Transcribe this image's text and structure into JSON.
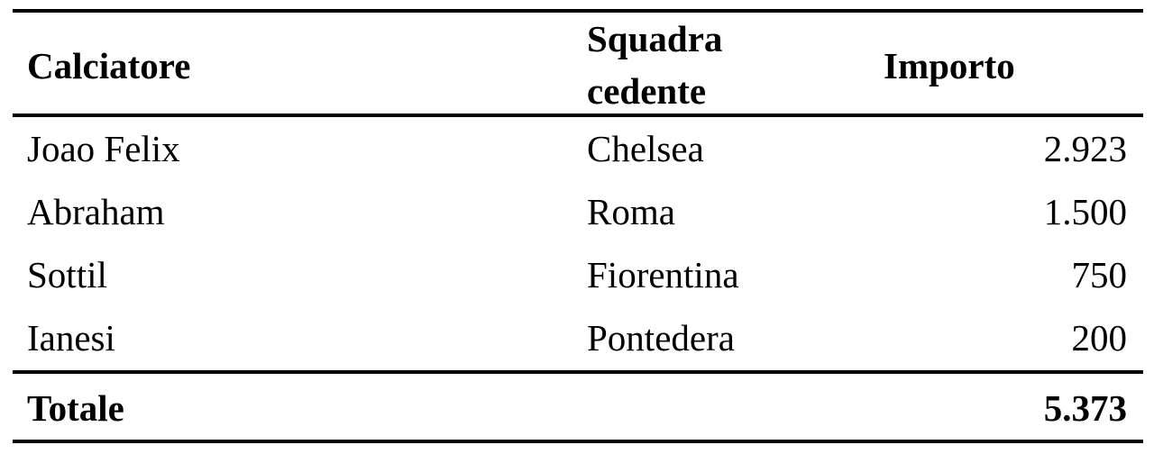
{
  "table": {
    "headers": [
      "Calciatore",
      "Squadra",
      "cedente",
      "Importo"
    ],
    "rows": [
      {
        "player": "Joao Felix",
        "team": "Chelsea",
        "amount": "2.923"
      },
      {
        "player": "Abraham",
        "team": "Roma",
        "amount": "1.500"
      },
      {
        "player": "Sottil",
        "team": "Fiorentina",
        "amount": "750"
      },
      {
        "player": "Ianesi",
        "team": "Pontedera",
        "amount": "200"
      }
    ],
    "total": {
      "label": "Totale",
      "amount": "5.373"
    }
  }
}
